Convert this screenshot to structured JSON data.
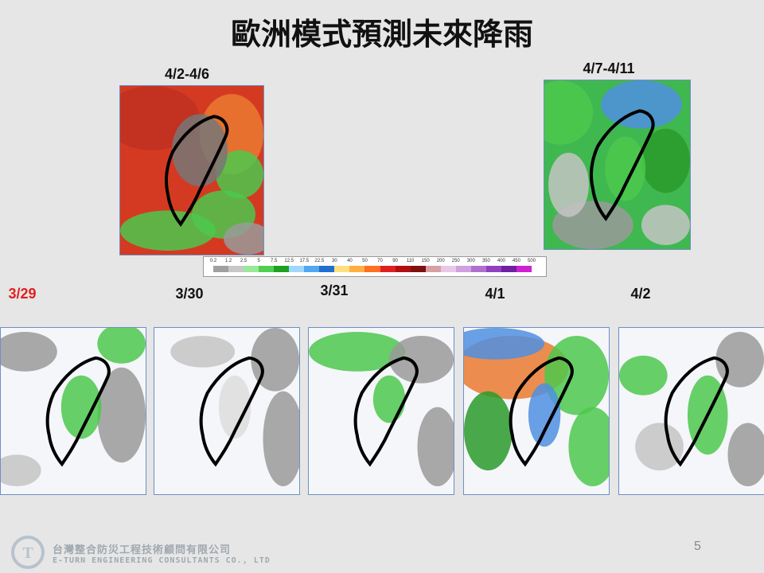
{
  "title": "歐洲模式預測未來降雨",
  "top_panels": [
    {
      "label": "4/2-4/6"
    },
    {
      "label": "4/7-4/11"
    }
  ],
  "colorbar": {
    "labels": [
      "0.2",
      "1.2",
      "2.5",
      "5",
      "7.5",
      "12.5",
      "17.5",
      "22.5",
      "30",
      "40",
      "50",
      "70",
      "90",
      "110",
      "150",
      "200",
      "250",
      "300",
      "350",
      "400",
      "450",
      "500"
    ]
  },
  "bottom_panels": [
    {
      "label": "3/29"
    },
    {
      "label": "3/30"
    },
    {
      "label": "3/31"
    },
    {
      "label": "4/1"
    },
    {
      "label": "4/2"
    }
  ],
  "footer": {
    "company_zh": "台灣整合防災工程技術顧問有限公司",
    "company_en": "E-TURN ENGINEERING CONSULTANTS CO., LTD",
    "page": "5"
  }
}
